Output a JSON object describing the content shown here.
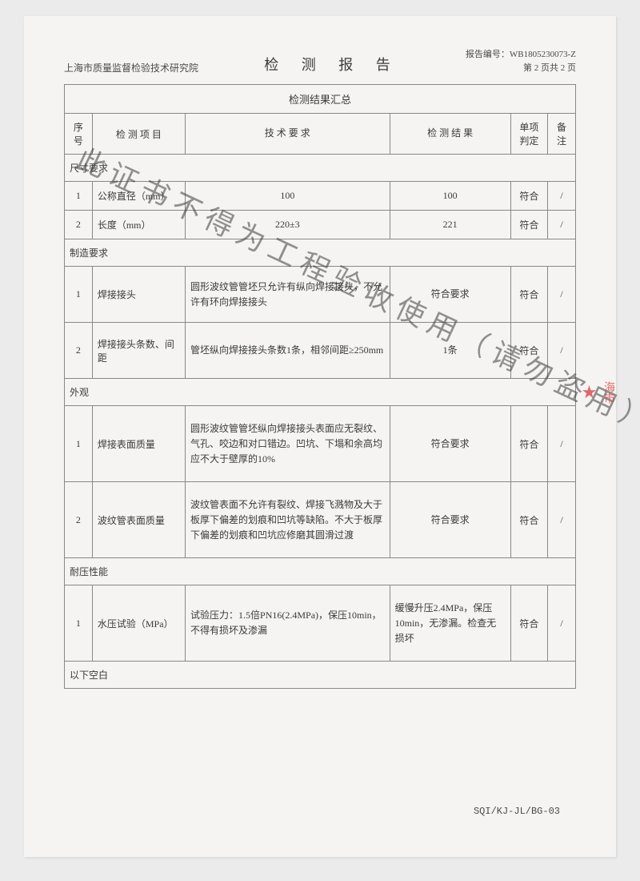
{
  "header": {
    "institute": "上海市质量监督检验技术研究院",
    "title": "检 测 报 告",
    "report_no_label": "报告编号：",
    "report_no": "WB1805230073-Z",
    "page_info": "第 2 页共 2 页"
  },
  "table": {
    "summary_title": "检测结果汇总",
    "columns": {
      "seq": "序号",
      "item": "检 测 项 目",
      "req": "技 术 要 求",
      "result": "检 测 结 果",
      "judge": "单项判定",
      "note": "备注"
    },
    "sections": [
      {
        "name": "尺寸要求",
        "rows": [
          {
            "seq": "1",
            "item": "公称直径（mm）",
            "req": "100",
            "result": "100",
            "judge": "符合",
            "note": "/"
          },
          {
            "seq": "2",
            "item": "长度（mm）",
            "req": "220±3",
            "result": "221",
            "judge": "符合",
            "note": "/"
          }
        ]
      },
      {
        "name": "制造要求",
        "rows": [
          {
            "seq": "1",
            "item": "焊接接头",
            "req": "圆形波纹管管坯只允许有纵向焊接接头，不允许有环向焊接接头",
            "result": "符合要求",
            "judge": "符合",
            "note": "/"
          },
          {
            "seq": "2",
            "item": "焊接接头条数、间距",
            "req": "管坯纵向焊接接头条数1条，相邻间距≥250mm",
            "result": "1条",
            "judge": "符合",
            "note": "/"
          }
        ]
      },
      {
        "name": "外观",
        "rows": [
          {
            "seq": "1",
            "item": "焊接表面质量",
            "req": "圆形波纹管管坯纵向焊接接头表面应无裂纹、气孔、咬边和对口错边。凹坑、下塌和余高均应不大于壁厚的10%",
            "result": "符合要求",
            "judge": "符合",
            "note": "/"
          },
          {
            "seq": "2",
            "item": "波纹管表面质量",
            "req": "波纹管表面不允许有裂纹、焊接飞溅物及大于板厚下偏差的划痕和凹坑等缺陷。不大于板厚下偏差的划痕和凹坑应修磨其圆滑过渡",
            "result": "符合要求",
            "judge": "符合",
            "note": "/"
          }
        ]
      },
      {
        "name": "耐压性能",
        "rows": [
          {
            "seq": "1",
            "item": "水压试验（MPa）",
            "req": "试验压力：1.5倍PN16(2.4MPa)，保压10min，不得有损坏及渗漏",
            "result": "缓慢升压2.4MPa，保压10min，无渗漏。检查无损坏",
            "judge": "符合",
            "note": "/"
          }
        ]
      }
    ],
    "blank": "以下空白"
  },
  "footer_code": "SQI/KJ-JL/BG-03",
  "watermark": "此证书不得为工程验收使用（请勿盗用）",
  "stamp_text": "海市",
  "colors": {
    "page_bg": "#f5f4f2",
    "body_bg": "#ebebec",
    "text": "#3a3a3a",
    "border": "#888888",
    "stamp": "#d93a3a"
  }
}
